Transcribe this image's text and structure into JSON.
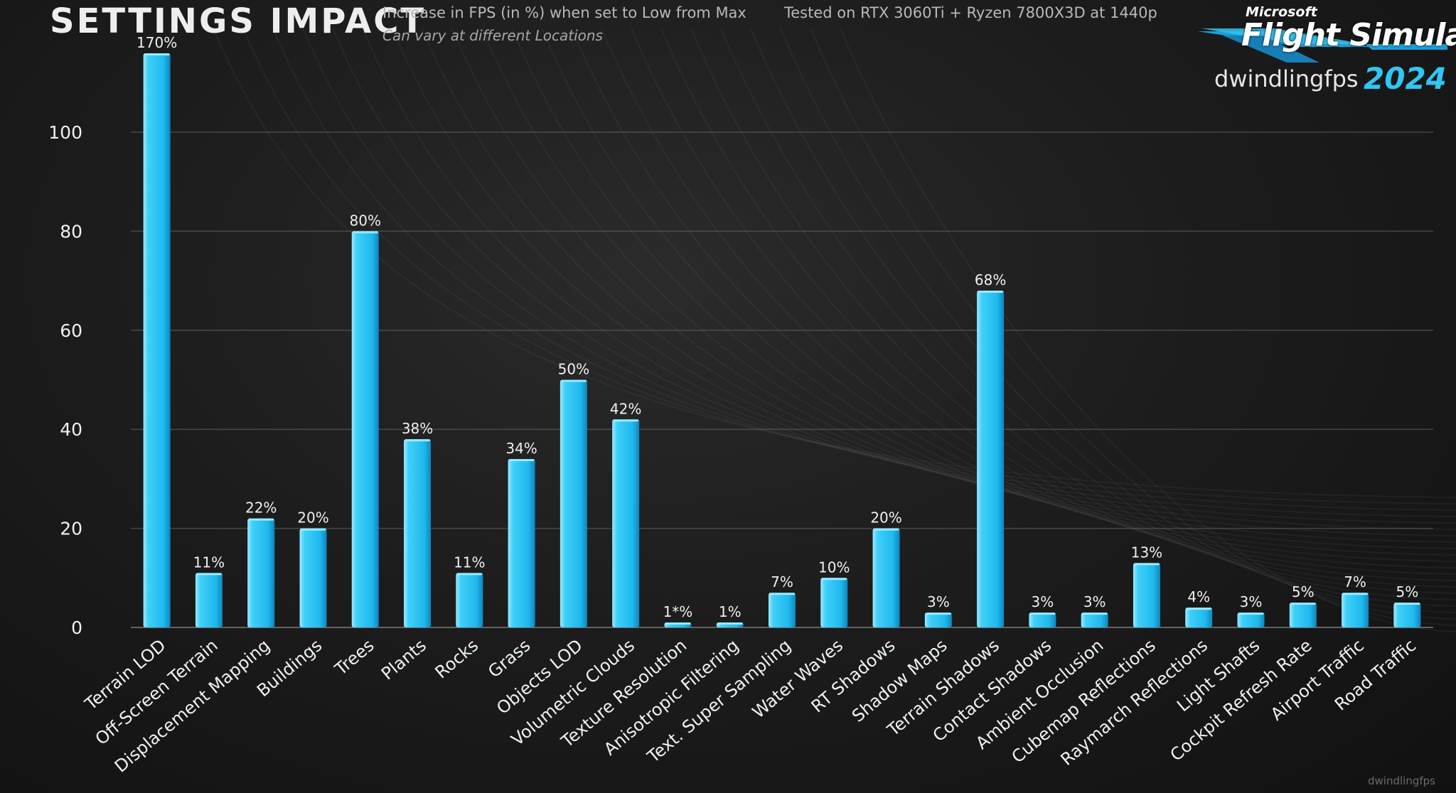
{
  "header": {
    "title": "SETTINGS IMPACT",
    "subtitle": "Increase in FPS (in %) when set to Low from Max",
    "test_rig": "Tested on RTX 3060Ti + Ryzen 7800X3D at 1440p",
    "note": "Can vary at different Locations"
  },
  "logo": {
    "brand": "Microsoft",
    "product": "Flight Simulator",
    "channel": "dwindlingfps",
    "year": "2024"
  },
  "watermark": "dwindlingfps",
  "colors": {
    "bar": "#2cc5f4",
    "bar_highlight": "#9beaff",
    "grid": "#6b6b6b",
    "text": "#f0f0f0"
  },
  "chart_data": {
    "type": "bar",
    "title": "SETTINGS IMPACT",
    "xlabel": "",
    "ylabel": "",
    "ylim": [
      0,
      115
    ],
    "yticks": [
      0,
      20,
      40,
      60,
      80,
      100
    ],
    "grid": true,
    "legend": "none",
    "categories": [
      "Terrain LOD",
      "Off-Screen Terrain",
      "Displacement Mapping",
      "Buildings",
      "Trees",
      "Plants",
      "Rocks",
      "Grass",
      "Objects LOD",
      "Volumetric Clouds",
      "Texture Resolution",
      "Anisotropic Filtering",
      "Text. Super Sampling",
      "Water Waves",
      "RT Shadows",
      "Shadow Maps",
      "Terrain Shadows",
      "Contact Shadows",
      "Ambient Occlusion",
      "Cubemap Reflections",
      "Raymarch Reflections",
      "Light Shafts",
      "Cockpit Refresh Rate",
      "Airport Traffic",
      "Road Traffic"
    ],
    "values": [
      170,
      11,
      22,
      20,
      80,
      38,
      11,
      34,
      50,
      42,
      1,
      1,
      7,
      10,
      20,
      3,
      68,
      3,
      3,
      13,
      4,
      3,
      5,
      7,
      5
    ],
    "data_labels": [
      "170%",
      "11%",
      "22%",
      "20%",
      "80%",
      "38%",
      "11%",
      "34%",
      "50%",
      "42%",
      "1*%",
      "1%",
      "7%",
      "10%",
      "20%",
      "3%",
      "68%",
      "3%",
      "3%",
      "13%",
      "4%",
      "3%",
      "5%",
      "7%",
      "5%"
    ]
  }
}
